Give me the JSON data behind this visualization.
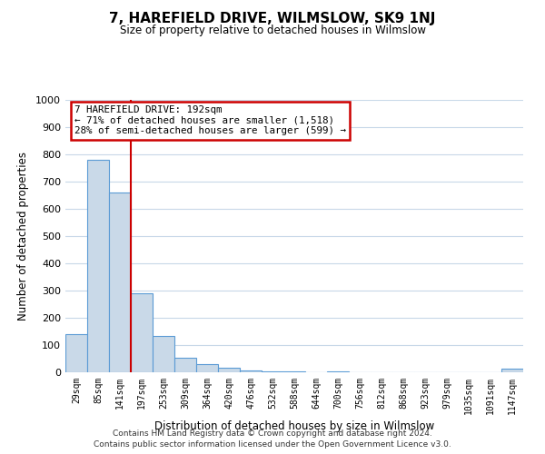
{
  "title": "7, HAREFIELD DRIVE, WILMSLOW, SK9 1NJ",
  "subtitle": "Size of property relative to detached houses in Wilmslow",
  "xlabel": "Distribution of detached houses by size in Wilmslow",
  "ylabel": "Number of detached properties",
  "bar_color": "#c9d9e8",
  "bar_edge_color": "#5b9bd5",
  "bin_labels": [
    "29sqm",
    "85sqm",
    "141sqm",
    "197sqm",
    "253sqm",
    "309sqm",
    "364sqm",
    "420sqm",
    "476sqm",
    "532sqm",
    "588sqm",
    "644sqm",
    "700sqm",
    "756sqm",
    "812sqm",
    "868sqm",
    "923sqm",
    "979sqm",
    "1035sqm",
    "1091sqm",
    "1147sqm"
  ],
  "bar_heights": [
    140,
    780,
    660,
    290,
    133,
    55,
    30,
    16,
    8,
    3,
    2,
    1,
    2,
    1,
    0,
    0,
    0,
    1,
    0,
    0,
    15
  ],
  "vline_x": 2.5,
  "vline_color": "#cc0000",
  "ylim": [
    0,
    1000
  ],
  "yticks": [
    0,
    100,
    200,
    300,
    400,
    500,
    600,
    700,
    800,
    900,
    1000
  ],
  "annotation_title": "7 HAREFIELD DRIVE: 192sqm",
  "annotation_line1": "← 71% of detached houses are smaller (1,518)",
  "annotation_line2": "28% of semi-detached houses are larger (599) →",
  "annotation_box_color": "#ffffff",
  "annotation_box_edge": "#cc0000",
  "footer1": "Contains HM Land Registry data © Crown copyright and database right 2024.",
  "footer2": "Contains public sector information licensed under the Open Government Licence v3.0.",
  "background_color": "#ffffff",
  "grid_color": "#c8d8e8"
}
